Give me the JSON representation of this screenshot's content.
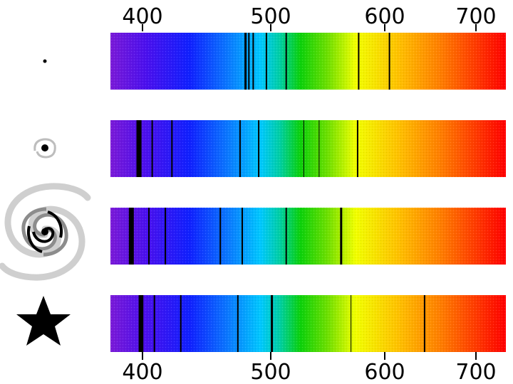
{
  "axis": {
    "min": 370,
    "max": 730,
    "top_ticks": [
      "400",
      "500",
      "600",
      "700"
    ],
    "bottom_ticks": [
      "400",
      "500",
      "600",
      "700"
    ]
  },
  "spectra": [
    {
      "icon": "tiny-dot-icon",
      "lines": [
        {
          "wl": 493,
          "w": 3
        },
        {
          "wl": 496,
          "w": 2
        },
        {
          "wl": 500,
          "w": 2
        },
        {
          "wl": 512,
          "w": 2
        },
        {
          "wl": 530,
          "w": 2
        },
        {
          "wl": 596,
          "w": 2
        },
        {
          "wl": 624,
          "w": 2
        }
      ]
    },
    {
      "icon": "small-spiral-galaxy-icon",
      "lines": [
        {
          "wl": 395,
          "w": 4
        },
        {
          "wl": 397,
          "w": 4
        },
        {
          "wl": 408,
          "w": 2
        },
        {
          "wl": 426,
          "w": 2
        },
        {
          "wl": 488,
          "w": 2
        },
        {
          "wl": 505,
          "w": 2
        },
        {
          "wl": 546,
          "w": 1
        },
        {
          "wl": 560,
          "w": 1
        },
        {
          "wl": 595,
          "w": 2
        }
      ]
    },
    {
      "icon": "large-spiral-galaxy-icon",
      "lines": [
        {
          "wl": 388,
          "w": 4
        },
        {
          "wl": 390,
          "w": 4
        },
        {
          "wl": 405,
          "w": 2
        },
        {
          "wl": 420,
          "w": 2
        },
        {
          "wl": 470,
          "w": 2
        },
        {
          "wl": 490,
          "w": 2
        },
        {
          "wl": 530,
          "w": 2
        },
        {
          "wl": 580,
          "w": 3
        }
      ]
    },
    {
      "icon": "star-icon",
      "lines": [
        {
          "wl": 397,
          "w": 4
        },
        {
          "wl": 399,
          "w": 3
        },
        {
          "wl": 410,
          "w": 2
        },
        {
          "wl": 434,
          "w": 2
        },
        {
          "wl": 486,
          "w": 2
        },
        {
          "wl": 517,
          "w": 3
        },
        {
          "wl": 589,
          "w": 1
        },
        {
          "wl": 656,
          "w": 2
        }
      ]
    }
  ]
}
